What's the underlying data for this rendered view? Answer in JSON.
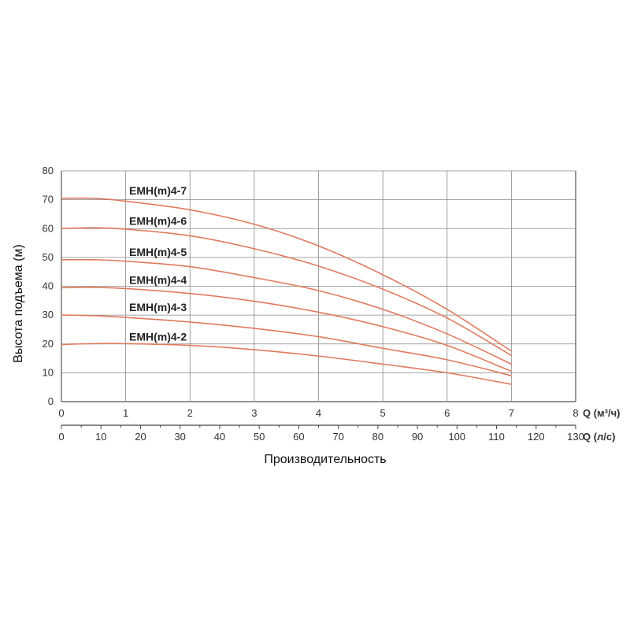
{
  "chart_data": {
    "type": "line",
    "xlabel": "Производительность",
    "ylabel": "Высота подъема (м)",
    "x_axis_primary": {
      "unit": "Q (м³/ч)",
      "range": [
        0,
        8
      ],
      "ticks": [
        0,
        1,
        2,
        3,
        4,
        5,
        6,
        7,
        8
      ]
    },
    "x_axis_secondary": {
      "unit": "Q (л/с)",
      "range": [
        0,
        130
      ],
      "ticks": [
        0,
        10,
        20,
        30,
        40,
        50,
        60,
        70,
        80,
        90,
        100,
        110,
        120,
        130
      ]
    },
    "ylim": [
      0,
      80
    ],
    "yticks": [
      0,
      10,
      20,
      30,
      40,
      50,
      60,
      70,
      80
    ],
    "grid": true,
    "line_color": "#e07a5f",
    "series": [
      {
        "name": "EMH(m)4-7",
        "x": [
          0,
          0.5,
          1,
          2,
          3,
          4,
          5,
          6,
          7
        ],
        "values": [
          70.5,
          70.5,
          69.5,
          66.5,
          61.5,
          54,
          44,
          32,
          17.5
        ]
      },
      {
        "name": "EMH(m)4-6",
        "x": [
          0,
          0.5,
          1,
          2,
          3,
          4,
          5,
          6,
          7
        ],
        "values": [
          60,
          60.3,
          59.8,
          57.5,
          53,
          47,
          39,
          29,
          16
        ]
      },
      {
        "name": "EMH(m)4-5",
        "x": [
          0,
          0.5,
          1,
          2,
          3,
          4,
          5,
          6,
          7
        ],
        "values": [
          49.2,
          49.2,
          48.7,
          46.8,
          43,
          38.5,
          32,
          23.5,
          13
        ]
      },
      {
        "name": "EMH(m)4-4",
        "x": [
          0,
          0.5,
          1,
          2,
          3,
          4,
          5,
          6,
          7
        ],
        "values": [
          39.5,
          39.6,
          39.2,
          37.5,
          34.8,
          31,
          26,
          19.5,
          10.5
        ]
      },
      {
        "name": "EMH(m)4-3",
        "x": [
          0,
          0.5,
          1,
          2,
          3,
          4,
          5,
          6,
          7
        ],
        "values": [
          30,
          29.8,
          29.2,
          27.6,
          25.4,
          22.5,
          18.5,
          14.5,
          9
        ]
      },
      {
        "name": "EMH(m)4-2",
        "x": [
          0,
          0.5,
          1,
          2,
          3,
          4,
          5,
          6,
          7
        ],
        "values": [
          19.8,
          20.1,
          20.1,
          19.5,
          18,
          15.8,
          13,
          10,
          6
        ]
      }
    ]
  }
}
